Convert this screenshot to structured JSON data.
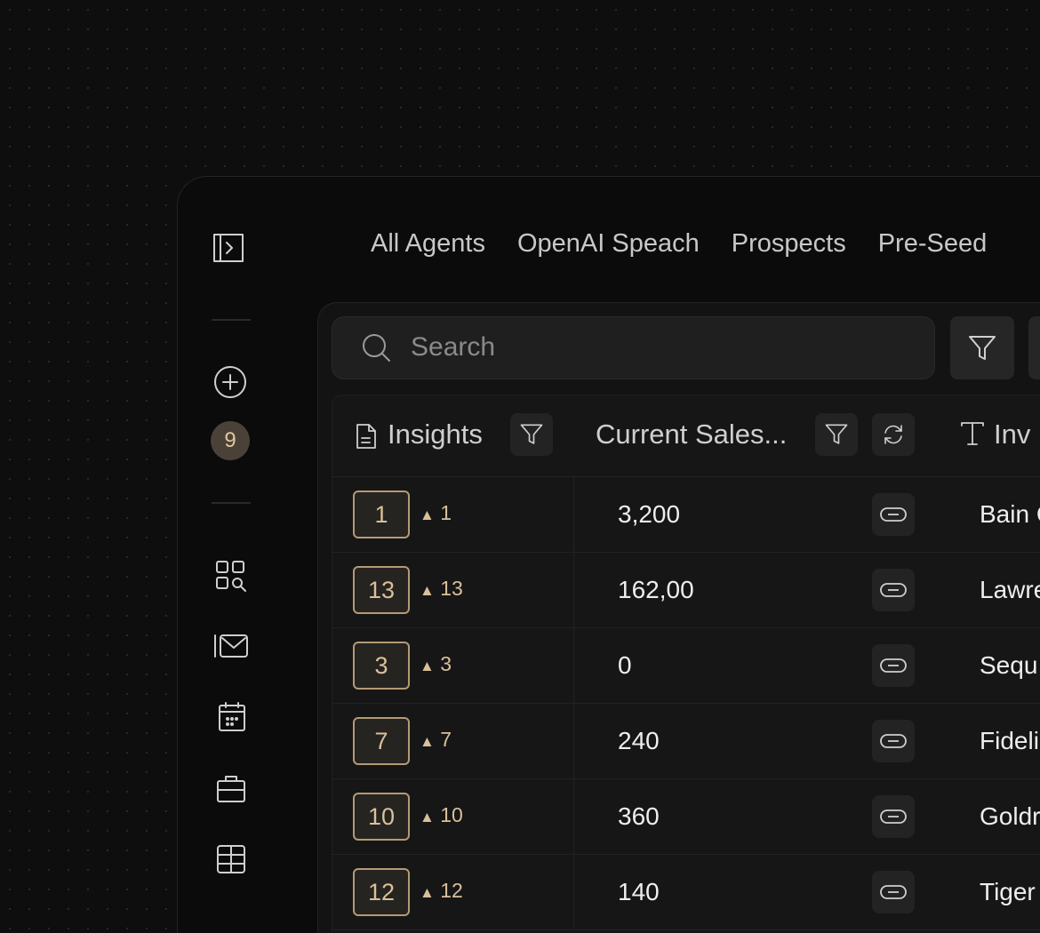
{
  "tabs": [
    "All Agents",
    "OpenAI Speach",
    "Prospects",
    "Pre-Seed"
  ],
  "sidebar": {
    "badge_count": "9",
    "icons": [
      "sidebar-toggle-icon",
      "add-circle-icon",
      "grid-search-icon",
      "mail-icon",
      "calendar-icon",
      "briefcase-icon",
      "table-icon"
    ]
  },
  "search": {
    "placeholder": "Search"
  },
  "table": {
    "columns": [
      {
        "label": "Insights",
        "icon": "document-icon"
      },
      {
        "label": "Current Sales...",
        "icon": ""
      },
      {
        "label": "Inv",
        "icon": "text-icon"
      }
    ],
    "rows": [
      {
        "rank": "1",
        "delta": "1",
        "sales": "3,200",
        "investor": "Bain C"
      },
      {
        "rank": "13",
        "delta": "13",
        "sales": "162,00",
        "investor": "Lawre"
      },
      {
        "rank": "3",
        "delta": "3",
        "sales": "0",
        "investor": "Sequ"
      },
      {
        "rank": "7",
        "delta": "7",
        "sales": "240",
        "investor": "Fideli"
      },
      {
        "rank": "10",
        "delta": "10",
        "sales": "360",
        "investor": "Goldr"
      },
      {
        "rank": "12",
        "delta": "12",
        "sales": "140",
        "investor": "Tiger"
      }
    ]
  },
  "colors": {
    "accent": "#d9c09a",
    "background": "#0e0e0e"
  }
}
